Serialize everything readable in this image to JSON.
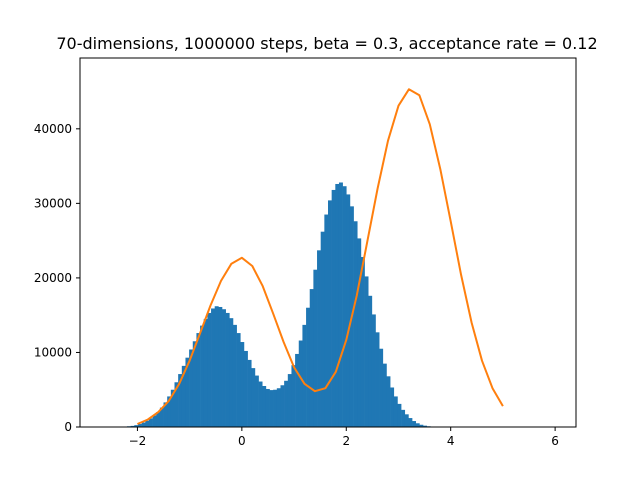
{
  "chart_data": {
    "type": "bar",
    "title": "70-dimensions, 1000000 steps, beta = 0.3, acceptance rate = 0.12",
    "xlabel": "",
    "ylabel": "",
    "xlim": [
      -3.1,
      6.4
    ],
    "ylim": [
      0,
      49500
    ],
    "x_ticks": [
      -2,
      0,
      2,
      4,
      6
    ],
    "y_ticks": [
      0,
      10000,
      20000,
      30000,
      40000
    ],
    "grid": false,
    "legend": "none",
    "bar_color": "#1f77b4",
    "line_color": "#ff7f0e",
    "histogram": {
      "bin_start": -2.2,
      "bin_width": 0.07,
      "counts": [
        100,
        150,
        250,
        400,
        600,
        850,
        1150,
        1550,
        2000,
        2600,
        3300,
        4100,
        5000,
        6000,
        7100,
        8200,
        9300,
        10400,
        11500,
        12600,
        13600,
        14500,
        15300,
        15900,
        16200,
        16100,
        15800,
        15300,
        14600,
        13700,
        12600,
        11400,
        10200,
        9000,
        7900,
        6900,
        6100,
        5500,
        5100,
        4950,
        5000,
        5200,
        5600,
        6200,
        7100,
        8300,
        9800,
        11600,
        13700,
        16000,
        18500,
        21100,
        23700,
        26200,
        28500,
        30400,
        31800,
        32600,
        32800,
        32300,
        31200,
        29600,
        27600,
        25300,
        22800,
        20200,
        17600,
        15100,
        12700,
        10500,
        8500,
        6800,
        5300,
        4100,
        3100,
        2300,
        1700,
        1200,
        800,
        500,
        300,
        180,
        100,
        50
      ]
    },
    "series": [
      {
        "x": [
          -2.0,
          -1.8,
          -1.6,
          -1.4,
          -1.2,
          -1.0,
          -0.8,
          -0.6,
          -0.4,
          -0.2,
          0.0,
          0.2,
          0.4,
          0.6,
          0.8,
          1.0,
          1.2,
          1.4,
          1.6,
          1.8,
          2.0,
          2.2,
          2.4,
          2.6,
          2.8,
          3.0,
          3.2,
          3.4,
          3.6,
          3.8,
          4.0,
          4.2,
          4.4,
          4.6,
          4.8,
          5.0
        ],
        "y": [
          400,
          1000,
          2000,
          3500,
          5800,
          8900,
          12600,
          16300,
          19600,
          21900,
          22700,
          21600,
          18900,
          15200,
          11400,
          8000,
          5800,
          4800,
          5200,
          7400,
          11700,
          17600,
          24800,
          32000,
          38400,
          43100,
          45300,
          44500,
          40600,
          34600,
          27600,
          20400,
          14000,
          8900,
          5200,
          2800
        ]
      }
    ]
  }
}
